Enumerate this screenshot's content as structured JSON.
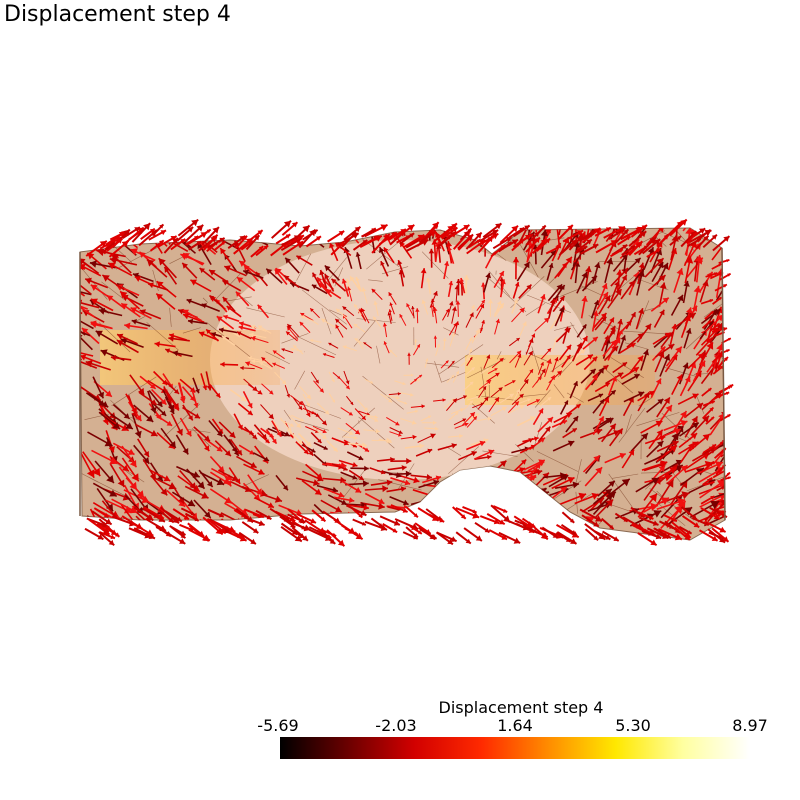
{
  "title": "Displacement step 4",
  "colorbar": {
    "title": "Displacement step 4",
    "ticks": [
      "-5.69",
      "-2.03",
      "1.64",
      "5.30",
      "8.97"
    ],
    "colormap": [
      "#000000",
      "#6a0000",
      "#d20000",
      "#ff2a00",
      "#ff8c00",
      "#ffe800",
      "#ffffa0",
      "#ffffff"
    ]
  },
  "scene": {
    "body_color": "#c8a084",
    "arrow_color": "#e00000",
    "arrow_dark": "#7a0000"
  }
}
